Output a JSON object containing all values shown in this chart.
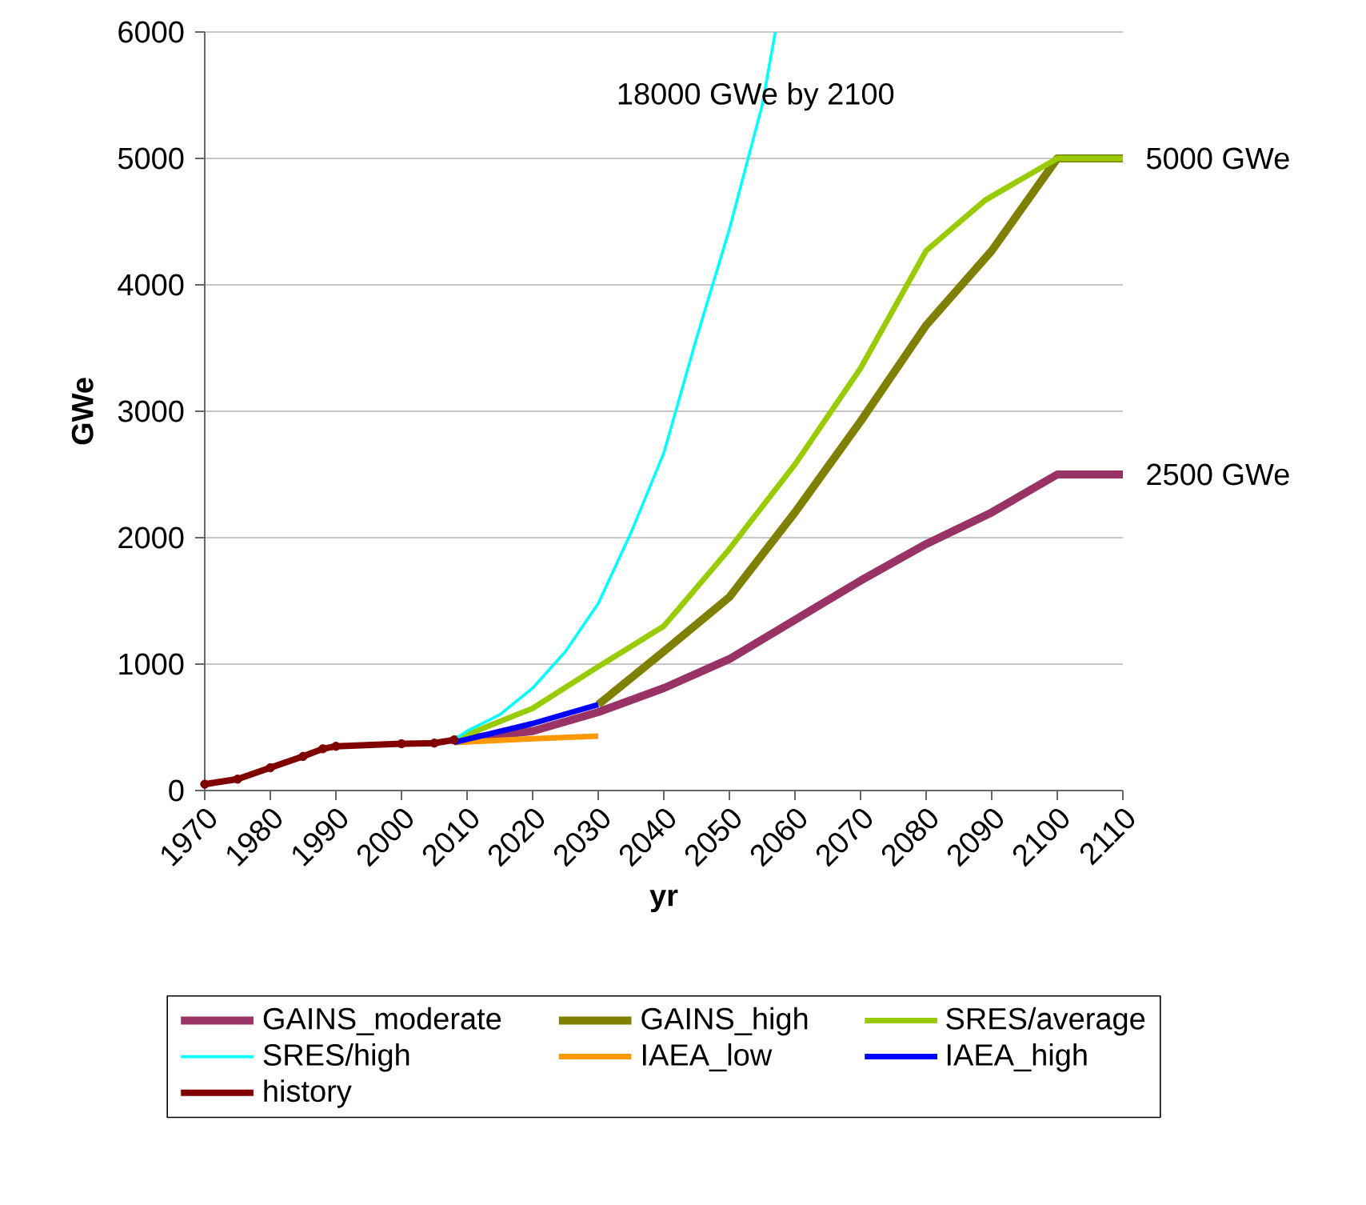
{
  "chart_data": {
    "type": "line",
    "xlabel": "yr",
    "ylabel": "GWe",
    "xlim": [
      1970,
      2110
    ],
    "xticks": [
      1970,
      1980,
      1990,
      2000,
      2010,
      2020,
      2030,
      2040,
      2050,
      2060,
      2070,
      2080,
      2090,
      2100,
      2110
    ],
    "ylim": [
      0,
      6000
    ],
    "yticks": [
      0,
      1000,
      2000,
      3000,
      4000,
      5000,
      6000
    ],
    "grid": "y",
    "legend": "bottom",
    "annotations": [
      "18000 GWe by 2100",
      {
        "text": "5000 GWe",
        "x": 2110,
        "y": 5000
      },
      {
        "text": "2500 GWe",
        "x": 2110,
        "y": 2500
      }
    ],
    "series": [
      {
        "name": "GAINS_moderate",
        "color": "#993366",
        "x": [
          2008,
          2020,
          2030,
          2040,
          2050,
          2060,
          2070,
          2080,
          2090,
          2100,
          2110
        ],
        "values": [
          400,
          470,
          620,
          810,
          1040,
          1350,
          1660,
          1950,
          2200,
          2500,
          2500
        ]
      },
      {
        "name": "GAINS_high",
        "color": "#808000",
        "x": [
          2030,
          2040,
          2050,
          2060,
          2070,
          2080,
          2090,
          2100,
          2110
        ],
        "values": [
          680,
          1100,
          1530,
          2200,
          2920,
          3680,
          4270,
          5000,
          5000
        ]
      },
      {
        "name": "SRES/average",
        "color": "#99cc00",
        "x": [
          2008,
          2020,
          2030,
          2040,
          2050,
          2060,
          2070,
          2080,
          2089,
          2100,
          2110
        ],
        "values": [
          400,
          650,
          980,
          1300,
          1910,
          2580,
          3340,
          4270,
          4670,
          5000,
          5000
        ]
      },
      {
        "name": "SRES/high",
        "color": "#00ffff",
        "x": [
          2008,
          2010,
          2015,
          2020,
          2025,
          2030,
          2035,
          2040,
          2045,
          2050,
          2055,
          2057
        ],
        "values": [
          400,
          470,
          600,
          810,
          1100,
          1480,
          2040,
          2670,
          3580,
          4440,
          5420,
          6000
        ]
      },
      {
        "name": "IAEA_low",
        "color": "#ff9900",
        "x": [
          2008,
          2020,
          2030
        ],
        "values": [
          380,
          410,
          430
        ]
      },
      {
        "name": "IAEA_high",
        "color": "#0000ff",
        "x": [
          2008,
          2020,
          2030
        ],
        "values": [
          380,
          530,
          680
        ]
      },
      {
        "name": "history",
        "color": "#800000",
        "marker": "circle",
        "x": [
          1970,
          1975,
          1980,
          1985,
          1988,
          1990,
          2000,
          2005,
          2008
        ],
        "values": [
          50,
          90,
          180,
          270,
          330,
          350,
          370,
          375,
          400
        ]
      }
    ]
  }
}
